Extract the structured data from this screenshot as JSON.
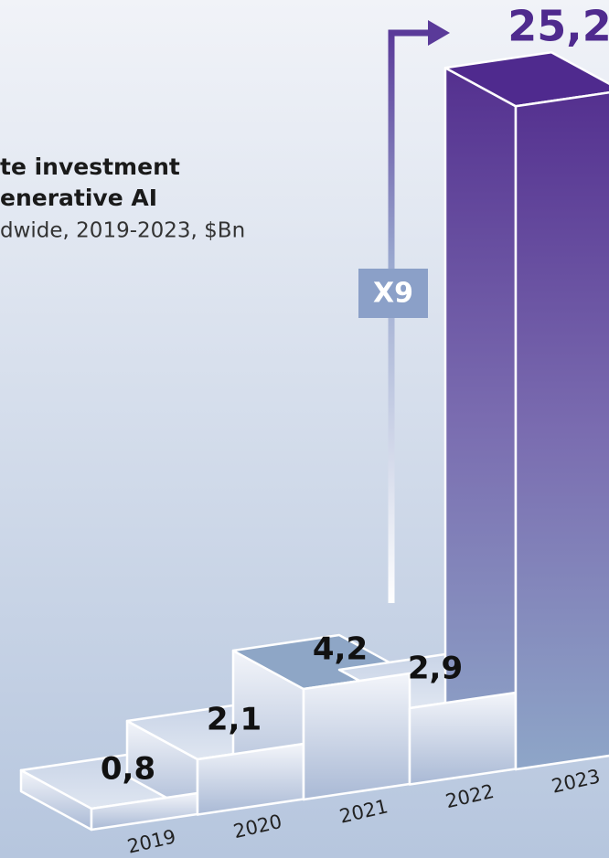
{
  "chart_data": {
    "type": "bar3d",
    "title_lines": [
      "te investment",
      "enerative AI"
    ],
    "subtitle": "dwide, 2019-2023, $Bn",
    "categories": [
      "2019",
      "2020",
      "2021",
      "2022",
      "2023"
    ],
    "values": [
      0.8,
      2.1,
      4.2,
      2.9,
      25.2
    ],
    "value_labels": [
      "0,8",
      "2,1",
      "4,2",
      "2,9",
      "25,2"
    ],
    "highlight_color": "#4f2a8e",
    "annotation": "X9"
  }
}
